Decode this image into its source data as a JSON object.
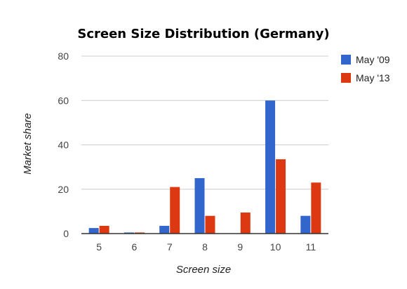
{
  "chart_data": {
    "type": "bar",
    "title": "Screen Size Distribution (Germany)",
    "xlabel": "Screen size",
    "ylabel": "Market share",
    "categories": [
      "5",
      "6",
      "7",
      "8",
      "9",
      "10",
      "11"
    ],
    "ylim": [
      0,
      80
    ],
    "yticks": [
      "0",
      "20",
      "40",
      "60",
      "80"
    ],
    "grid": true,
    "legend_position": "right",
    "series": [
      {
        "name": "May '09",
        "color": "#3366cc",
        "values": [
          2.5,
          0.5,
          3.5,
          25,
          0,
          60,
          8
        ]
      },
      {
        "name": "May '13",
        "color": "#dc3912",
        "values": [
          3.5,
          0.5,
          21,
          8,
          9.5,
          33.5,
          23
        ]
      }
    ]
  }
}
